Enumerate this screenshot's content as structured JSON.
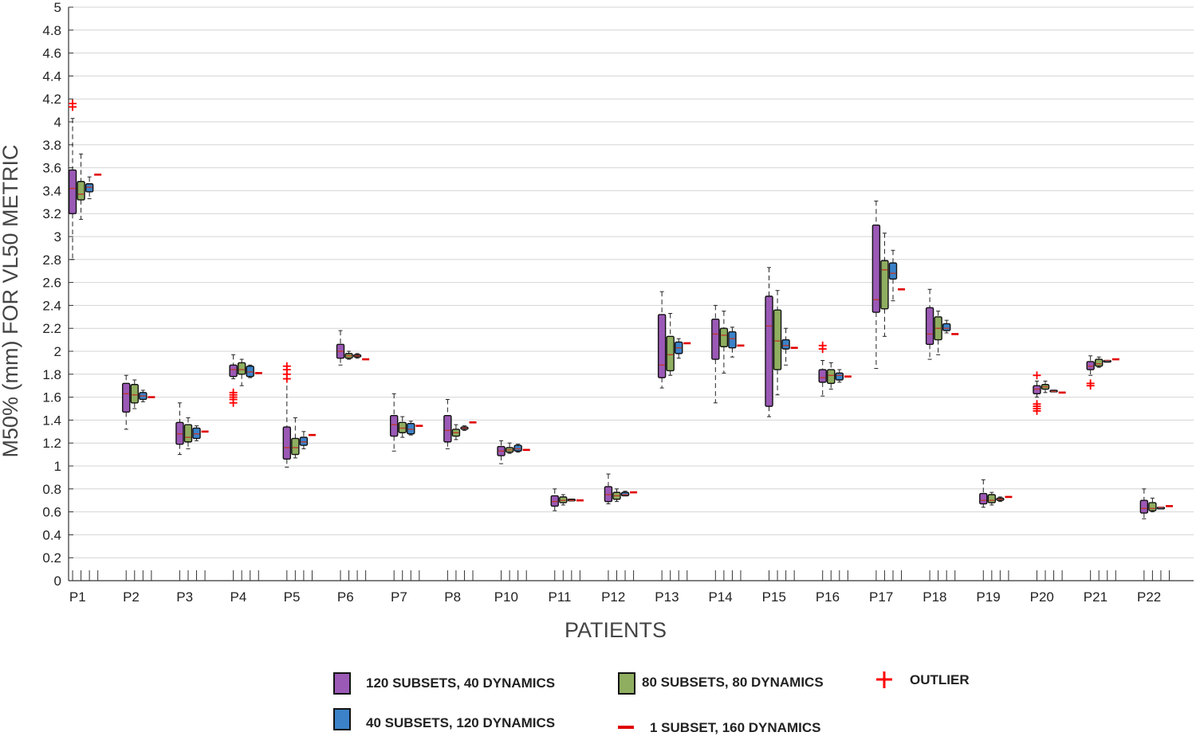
{
  "chart_data": {
    "type": "box",
    "title": "",
    "xlabel": "PATIENTS",
    "ylabel": "M50% (mm) FOR VL50 METRIC",
    "ylim": [
      0,
      5
    ],
    "yticks": [
      "0",
      "0.2",
      "0.4",
      "0.6",
      "0.8",
      "1",
      "1.2",
      "1.4",
      "1.6",
      "1.8",
      "2",
      "2.2",
      "2.4",
      "2.6",
      "2.8",
      "3",
      "3.2",
      "3.4",
      "3.6",
      "3.8",
      "4",
      "4.2",
      "4.4",
      "4.6",
      "4.8",
      "5"
    ],
    "grid": "horizontal",
    "legend_position": "bottom",
    "categories": [
      "P1",
      "P2",
      "P3",
      "P4",
      "P5",
      "P6",
      "P7",
      "P8",
      "P10",
      "P11",
      "P12",
      "P13",
      "P14",
      "P15",
      "P16",
      "P17",
      "P18",
      "P19",
      "P20",
      "P21",
      "P22"
    ],
    "legend": {
      "s120": "120 SUBSETS, 40 DYNAMICS",
      "s80": "80 SUBSETS, 80 DYNAMICS",
      "s40": "40 SUBSETS, 120 DYNAMICS",
      "s1": "1 SUBSET, 160 DYNAMICS",
      "outlier": "OUTLIER"
    },
    "colors": {
      "s120": "#9b59b6",
      "s80": "#8fae60",
      "s40": "#3b82c9",
      "s1": "#e00000",
      "outlier": "#ff0000",
      "grid": "#d4d4d4"
    },
    "series": [
      {
        "key": "s120",
        "boxes": [
          {
            "min": 2.8,
            "q1": 3.2,
            "median": 3.42,
            "q3": 3.58,
            "max": 4.03,
            "outliers": [
              4.13,
              4.16
            ]
          },
          {
            "min": 1.32,
            "q1": 1.47,
            "median": 1.63,
            "q3": 1.72,
            "max": 1.79,
            "outliers": []
          },
          {
            "min": 1.1,
            "q1": 1.19,
            "median": 1.28,
            "q3": 1.38,
            "max": 1.55,
            "outliers": []
          },
          {
            "min": 1.76,
            "q1": 1.78,
            "median": 1.84,
            "q3": 1.88,
            "max": 1.97,
            "outliers": [
              1.55,
              1.58,
              1.6,
              1.62,
              1.64
            ]
          },
          {
            "min": 0.99,
            "q1": 1.06,
            "median": 1.16,
            "q3": 1.34,
            "max": 1.84,
            "outliers": [
              1.76,
              1.8,
              1.84,
              1.87
            ]
          },
          {
            "min": 1.88,
            "q1": 1.94,
            "median": 2.0,
            "q3": 2.06,
            "max": 2.18,
            "outliers": []
          },
          {
            "min": 1.13,
            "q1": 1.26,
            "median": 1.36,
            "q3": 1.44,
            "max": 1.63,
            "outliers": []
          },
          {
            "min": 1.15,
            "q1": 1.21,
            "median": 1.31,
            "q3": 1.44,
            "max": 1.58,
            "outliers": []
          },
          {
            "min": 1.02,
            "q1": 1.09,
            "median": 1.13,
            "q3": 1.17,
            "max": 1.22,
            "outliers": []
          },
          {
            "min": 0.61,
            "q1": 0.65,
            "median": 0.69,
            "q3": 0.74,
            "max": 0.8,
            "outliers": []
          },
          {
            "min": 0.67,
            "q1": 0.69,
            "median": 0.75,
            "q3": 0.82,
            "max": 0.93,
            "outliers": []
          },
          {
            "min": 1.68,
            "q1": 1.77,
            "median": 1.88,
            "q3": 2.32,
            "max": 2.52,
            "outliers": []
          },
          {
            "min": 1.55,
            "q1": 1.93,
            "median": 2.15,
            "q3": 2.28,
            "max": 2.4,
            "outliers": []
          },
          {
            "min": 1.43,
            "q1": 1.52,
            "median": 2.22,
            "q3": 2.48,
            "max": 2.73,
            "outliers": []
          },
          {
            "min": 1.61,
            "q1": 1.73,
            "median": 1.77,
            "q3": 1.84,
            "max": 1.92,
            "outliers": [
              2.02,
              2.05
            ]
          },
          {
            "min": 1.85,
            "q1": 2.34,
            "median": 2.45,
            "q3": 3.1,
            "max": 3.31,
            "outliers": []
          },
          {
            "min": 1.93,
            "q1": 2.06,
            "median": 2.15,
            "q3": 2.38,
            "max": 2.54,
            "outliers": []
          },
          {
            "min": 0.64,
            "q1": 0.67,
            "median": 0.7,
            "q3": 0.76,
            "max": 0.88,
            "outliers": []
          },
          {
            "min": 1.6,
            "q1": 1.63,
            "median": 1.67,
            "q3": 1.7,
            "max": 1.74,
            "outliers": [
              1.48,
              1.5,
              1.52,
              1.54,
              1.79
            ]
          },
          {
            "min": 1.79,
            "q1": 1.84,
            "median": 1.87,
            "q3": 1.91,
            "max": 1.96,
            "outliers": [
              1.7,
              1.72
            ]
          },
          {
            "min": 0.54,
            "q1": 0.59,
            "median": 0.63,
            "q3": 0.7,
            "max": 0.8,
            "outliers": []
          }
        ]
      },
      {
        "key": "s80",
        "boxes": [
          {
            "min": 3.15,
            "q1": 3.32,
            "median": 3.37,
            "q3": 3.48,
            "max": 3.72,
            "outliers": []
          },
          {
            "min": 1.5,
            "q1": 1.55,
            "median": 1.62,
            "q3": 1.71,
            "max": 1.75,
            "outliers": []
          },
          {
            "min": 1.15,
            "q1": 1.21,
            "median": 1.25,
            "q3": 1.36,
            "max": 1.42,
            "outliers": []
          },
          {
            "min": 1.7,
            "q1": 1.8,
            "median": 1.84,
            "q3": 1.9,
            "max": 1.93,
            "outliers": []
          },
          {
            "min": 1.07,
            "q1": 1.1,
            "median": 1.16,
            "q3": 1.24,
            "max": 1.42,
            "outliers": []
          },
          {
            "min": 1.93,
            "q1": 1.94,
            "median": 1.96,
            "q3": 1.98,
            "max": 2.0,
            "outliers": []
          },
          {
            "min": 1.25,
            "q1": 1.29,
            "median": 1.33,
            "q3": 1.38,
            "max": 1.43,
            "outliers": []
          },
          {
            "min": 1.23,
            "q1": 1.26,
            "median": 1.29,
            "q3": 1.32,
            "max": 1.36,
            "outliers": []
          },
          {
            "min": 1.11,
            "q1": 1.12,
            "median": 1.14,
            "q3": 1.16,
            "max": 1.2,
            "outliers": []
          },
          {
            "min": 0.66,
            "q1": 0.68,
            "median": 0.7,
            "q3": 0.73,
            "max": 0.75,
            "outliers": []
          },
          {
            "min": 0.69,
            "q1": 0.71,
            "median": 0.74,
            "q3": 0.77,
            "max": 0.8,
            "outliers": []
          },
          {
            "min": 1.79,
            "q1": 1.83,
            "median": 1.97,
            "q3": 2.13,
            "max": 2.33,
            "outliers": []
          },
          {
            "min": 1.81,
            "q1": 2.04,
            "median": 2.14,
            "q3": 2.2,
            "max": 2.35,
            "outliers": []
          },
          {
            "min": 1.62,
            "q1": 1.84,
            "median": 2.09,
            "q3": 2.36,
            "max": 2.53,
            "outliers": []
          },
          {
            "min": 1.67,
            "q1": 1.72,
            "median": 1.79,
            "q3": 1.84,
            "max": 1.9,
            "outliers": []
          },
          {
            "min": 2.13,
            "q1": 2.37,
            "median": 2.71,
            "q3": 2.79,
            "max": 3.03,
            "outliers": []
          },
          {
            "min": 1.97,
            "q1": 2.1,
            "median": 2.2,
            "q3": 2.3,
            "max": 2.35,
            "outliers": []
          },
          {
            "min": 0.66,
            "q1": 0.68,
            "median": 0.7,
            "q3": 0.75,
            "max": 0.77,
            "outliers": []
          },
          {
            "min": 1.64,
            "q1": 1.67,
            "median": 1.69,
            "q3": 1.71,
            "max": 1.74,
            "outliers": []
          },
          {
            "min": 1.86,
            "q1": 1.87,
            "median": 1.89,
            "q3": 1.93,
            "max": 1.95,
            "outliers": []
          },
          {
            "min": 0.6,
            "q1": 0.61,
            "median": 0.63,
            "q3": 0.68,
            "max": 0.72,
            "outliers": []
          }
        ]
      },
      {
        "key": "s40",
        "boxes": [
          {
            "min": 3.33,
            "q1": 3.39,
            "median": 3.43,
            "q3": 3.46,
            "max": 3.52,
            "outliers": []
          },
          {
            "min": 1.56,
            "q1": 1.58,
            "median": 1.61,
            "q3": 1.64,
            "max": 1.66,
            "outliers": []
          },
          {
            "min": 1.22,
            "q1": 1.24,
            "median": 1.28,
            "q3": 1.33,
            "max": 1.35,
            "outliers": []
          },
          {
            "min": 1.77,
            "q1": 1.78,
            "median": 1.82,
            "q3": 1.87,
            "max": 1.88,
            "outliers": []
          },
          {
            "min": 1.15,
            "q1": 1.18,
            "median": 1.21,
            "q3": 1.25,
            "max": 1.3,
            "outliers": []
          },
          {
            "min": 1.94,
            "q1": 1.95,
            "median": 1.96,
            "q3": 1.97,
            "max": 1.98,
            "outliers": []
          },
          {
            "min": 1.27,
            "q1": 1.28,
            "median": 1.32,
            "q3": 1.37,
            "max": 1.39,
            "outliers": []
          },
          {
            "min": 1.31,
            "q1": 1.32,
            "median": 1.33,
            "q3": 1.34,
            "max": 1.35,
            "outliers": []
          },
          {
            "min": 1.12,
            "q1": 1.13,
            "median": 1.15,
            "q3": 1.18,
            "max": 1.19,
            "outliers": []
          },
          {
            "min": 0.7,
            "q1": 0.7,
            "median": 0.7,
            "q3": 0.71,
            "max": 0.71,
            "outliers": []
          },
          {
            "min": 0.74,
            "q1": 0.74,
            "median": 0.75,
            "q3": 0.77,
            "max": 0.78,
            "outliers": []
          },
          {
            "min": 1.94,
            "q1": 1.98,
            "median": 2.03,
            "q3": 2.08,
            "max": 2.11,
            "outliers": []
          },
          {
            "min": 1.95,
            "q1": 2.03,
            "median": 2.11,
            "q3": 2.17,
            "max": 2.21,
            "outliers": []
          },
          {
            "min": 1.88,
            "q1": 2.02,
            "median": 2.05,
            "q3": 2.1,
            "max": 2.2,
            "outliers": []
          },
          {
            "min": 1.73,
            "q1": 1.75,
            "median": 1.79,
            "q3": 1.81,
            "max": 1.84,
            "outliers": []
          },
          {
            "min": 2.44,
            "q1": 2.63,
            "median": 2.68,
            "q3": 2.77,
            "max": 2.88,
            "outliers": []
          },
          {
            "min": 2.16,
            "q1": 2.18,
            "median": 2.2,
            "q3": 2.24,
            "max": 2.27,
            "outliers": []
          },
          {
            "min": 0.69,
            "q1": 0.7,
            "median": 0.71,
            "q3": 0.72,
            "max": 0.73,
            "outliers": []
          },
          {
            "min": 1.65,
            "q1": 1.65,
            "median": 1.65,
            "q3": 1.66,
            "max": 1.66,
            "outliers": []
          },
          {
            "min": 1.92,
            "q1": 1.92,
            "median": 1.92,
            "q3": 1.92,
            "max": 1.92,
            "outliers": []
          },
          {
            "min": 0.64,
            "q1": 0.64,
            "median": 0.64,
            "q3": 0.64,
            "max": 0.64,
            "outliers": []
          }
        ]
      }
    ],
    "single": {
      "key": "s1",
      "values": [
        3.54,
        1.6,
        1.3,
        1.81,
        1.27,
        1.93,
        1.35,
        1.38,
        1.14,
        0.7,
        0.77,
        2.07,
        2.05,
        2.03,
        1.78,
        2.54,
        2.15,
        0.73,
        1.64,
        1.93,
        0.65
      ]
    }
  }
}
